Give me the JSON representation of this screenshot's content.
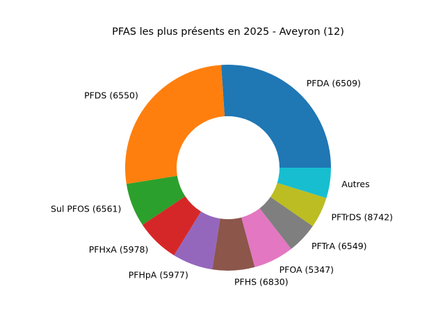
{
  "chart_data": {
    "type": "pie",
    "style": "donut",
    "title": "PFAS les plus présents en 2025 - Aveyron (12)",
    "categories": [
      "PFDA (6509)",
      "PFDS (6550)",
      "Sul PFOS (6561)",
      "PFHxA (5978)",
      "PFHpA (5977)",
      "PFHS (6830)",
      "PFOA (5347)",
      "PFTrA (6549)",
      "PFTrDS (8742)",
      "Autres"
    ],
    "values": [
      26.3,
      26.7,
      6.9,
      6.9,
      6.4,
      6.7,
      6.4,
      4.9,
      4.9,
      4.8
    ],
    "colors": [
      "#1f77b4",
      "#ff7f0e",
      "#2ca02c",
      "#d62728",
      "#9467bd",
      "#8c564b",
      "#e377c2",
      "#7f7f7f",
      "#bcbd22",
      "#17becf"
    ],
    "start_angle_deg": 0,
    "direction": "counterclockwise",
    "legend": "none"
  }
}
